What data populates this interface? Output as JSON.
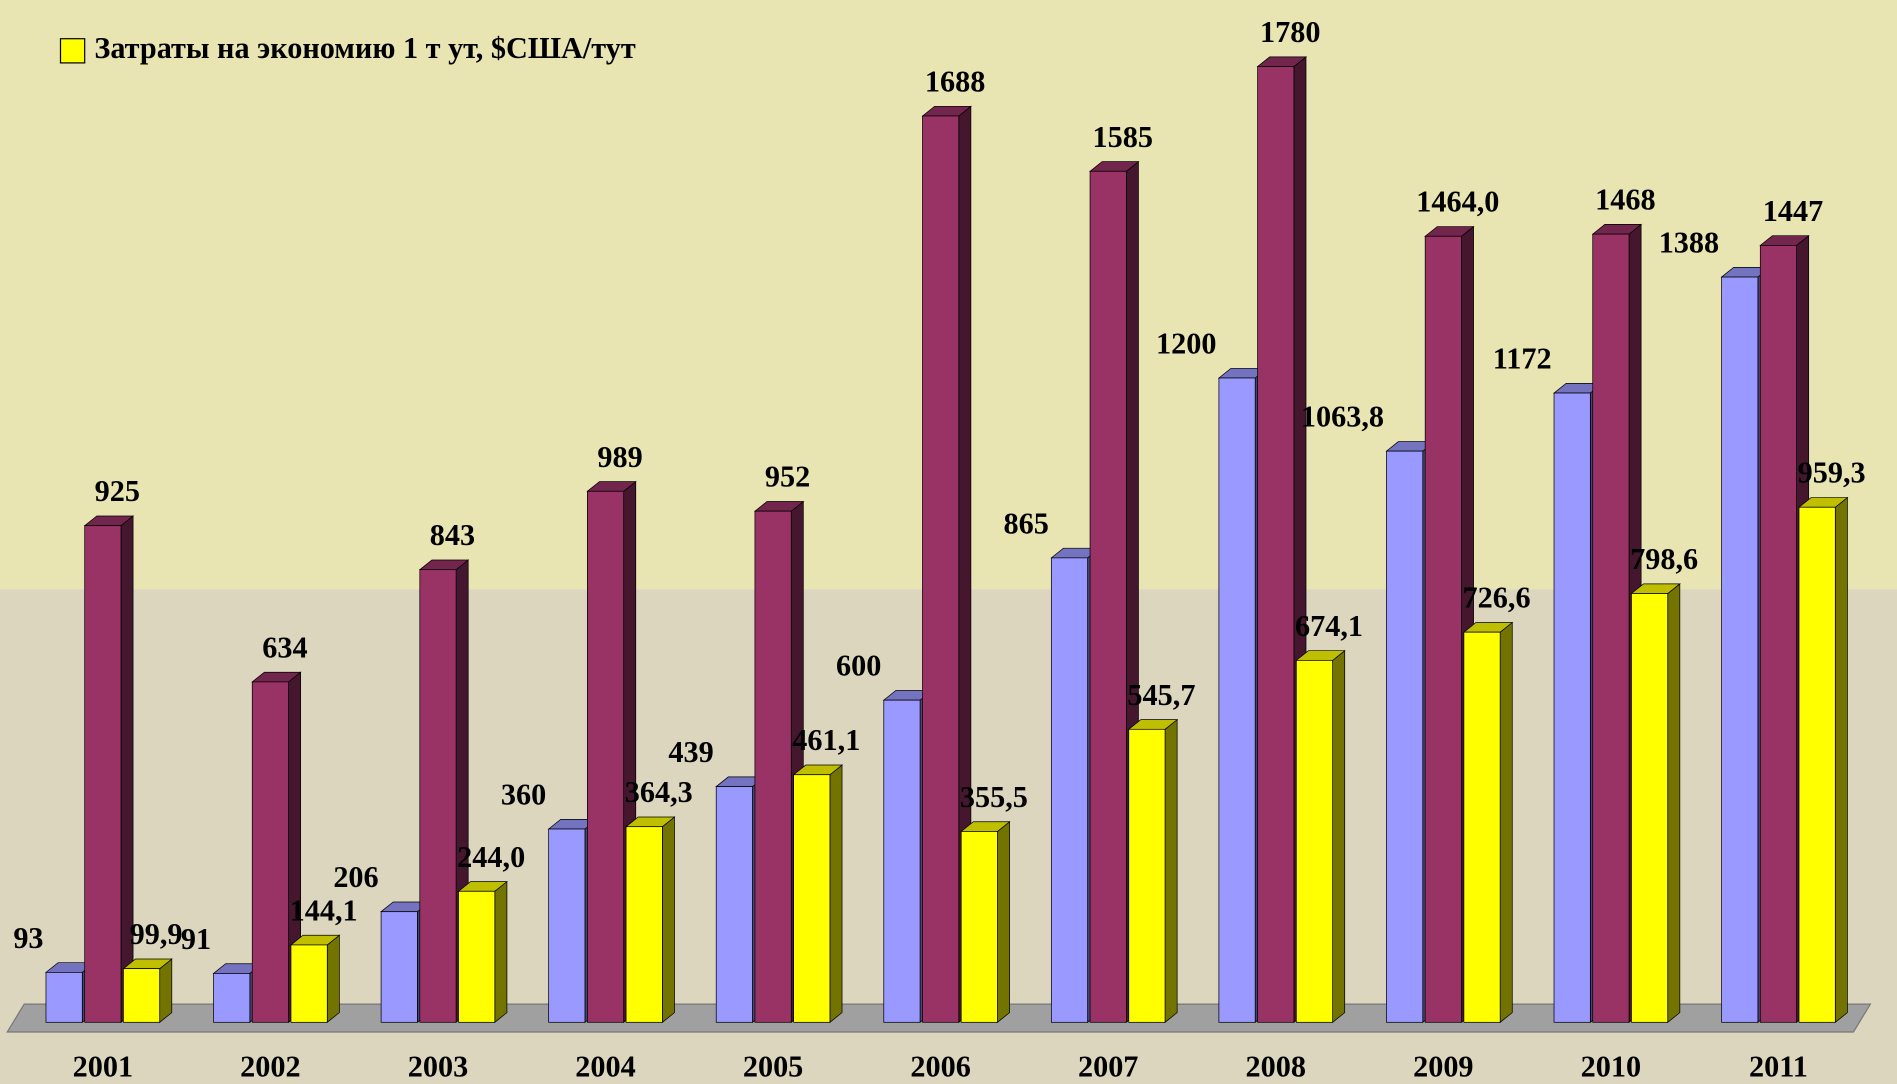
{
  "chart_data": {
    "type": "bar3d",
    "categories": [
      "2001",
      "2002",
      "2003",
      "2004",
      "2005",
      "2006",
      "2007",
      "2008",
      "2009",
      "2010",
      "2011"
    ],
    "series": [
      {
        "color": "#9999ff",
        "values": [
          93,
          91,
          206,
          360,
          439,
          600,
          865,
          1200,
          1063.8,
          1172,
          1388
        ],
        "value_labels": [
          "93",
          "91",
          "206",
          "360",
          "439",
          "600",
          "865",
          "1200",
          "1063,8",
          "1172",
          "1388"
        ]
      },
      {
        "color": "#993366",
        "values": [
          925,
          634,
          843,
          989,
          952,
          1688,
          1585,
          1780,
          1464.0,
          1468,
          1447
        ],
        "value_labels": [
          "925",
          "634",
          "843",
          "989",
          "952",
          "1688",
          "1585",
          "1780",
          "1464,0",
          "1468",
          "1447"
        ]
      },
      {
        "name": "Затраты на экономию 1 т ут, $США/тут",
        "color": "#ffff00",
        "values": [
          99.9,
          144.1,
          244.0,
          364.3,
          461.1,
          355.5,
          545.7,
          674.1,
          726.6,
          798.6,
          959.3
        ],
        "value_labels": [
          "99,9",
          "144,1",
          "244,0",
          "364,3",
          "461,1",
          "355,5",
          "545,7",
          "674,1",
          "726,6",
          "798,6",
          "959,3"
        ]
      }
    ],
    "ylim": [
      0,
      1900
    ]
  }
}
